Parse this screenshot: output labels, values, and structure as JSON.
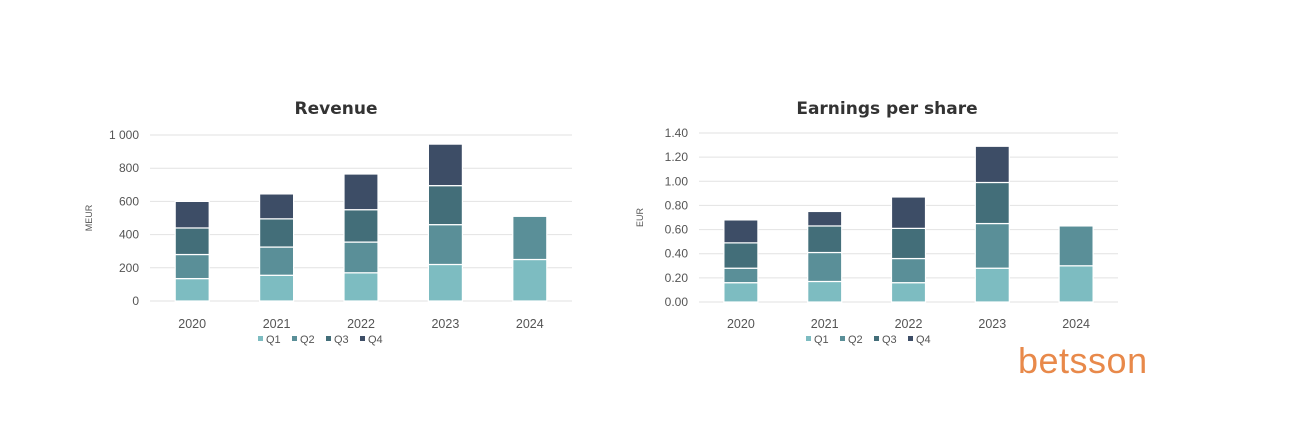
{
  "logo": "betsson",
  "colors": {
    "Q1": "#7dbcc1",
    "Q2": "#5a8f98",
    "Q3": "#436e79",
    "Q4": "#3d4d66",
    "grid": "#e2e2e2",
    "logo": "#e8894a"
  },
  "chart_data": [
    {
      "type": "bar",
      "stacked": true,
      "title": "Revenue",
      "ylabel": "MEUR",
      "xlabel": "",
      "categories": [
        "2020",
        "2021",
        "2022",
        "2023",
        "2024"
      ],
      "ylim": [
        0,
        1000
      ],
      "yticks": [
        0,
        200,
        400,
        600,
        800,
        1000
      ],
      "yticklabels": [
        "0",
        "200",
        "400",
        "600",
        "800",
        "1 000"
      ],
      "grid": true,
      "legend": "bottom",
      "series": [
        {
          "name": "Q1",
          "values": [
            135,
            155,
            170,
            220,
            250
          ]
        },
        {
          "name": "Q2",
          "values": [
            145,
            170,
            185,
            240,
            260
          ]
        },
        {
          "name": "Q3",
          "values": [
            160,
            170,
            195,
            235,
            null
          ]
        },
        {
          "name": "Q4",
          "values": [
            160,
            150,
            215,
            250,
            null
          ]
        }
      ]
    },
    {
      "type": "bar",
      "stacked": true,
      "title": "Earnings per share",
      "ylabel": "EUR",
      "xlabel": "",
      "categories": [
        "2020",
        "2021",
        "2022",
        "2023",
        "2024"
      ],
      "ylim": [
        0,
        1.4
      ],
      "yticks": [
        0,
        0.2,
        0.4,
        0.6,
        0.8,
        1.0,
        1.2,
        1.4
      ],
      "yticklabels": [
        "0.00",
        "0.20",
        "0.40",
        "0.60",
        "0.80",
        "1.00",
        "1.20",
        "1.40"
      ],
      "grid": true,
      "legend": "bottom",
      "series": [
        {
          "name": "Q1",
          "values": [
            0.16,
            0.17,
            0.16,
            0.28,
            0.3
          ]
        },
        {
          "name": "Q2",
          "values": [
            0.12,
            0.24,
            0.2,
            0.37,
            0.33
          ]
        },
        {
          "name": "Q3",
          "values": [
            0.21,
            0.22,
            0.25,
            0.34,
            null
          ]
        },
        {
          "name": "Q4",
          "values": [
            0.19,
            0.12,
            0.26,
            0.3,
            null
          ]
        }
      ]
    }
  ]
}
